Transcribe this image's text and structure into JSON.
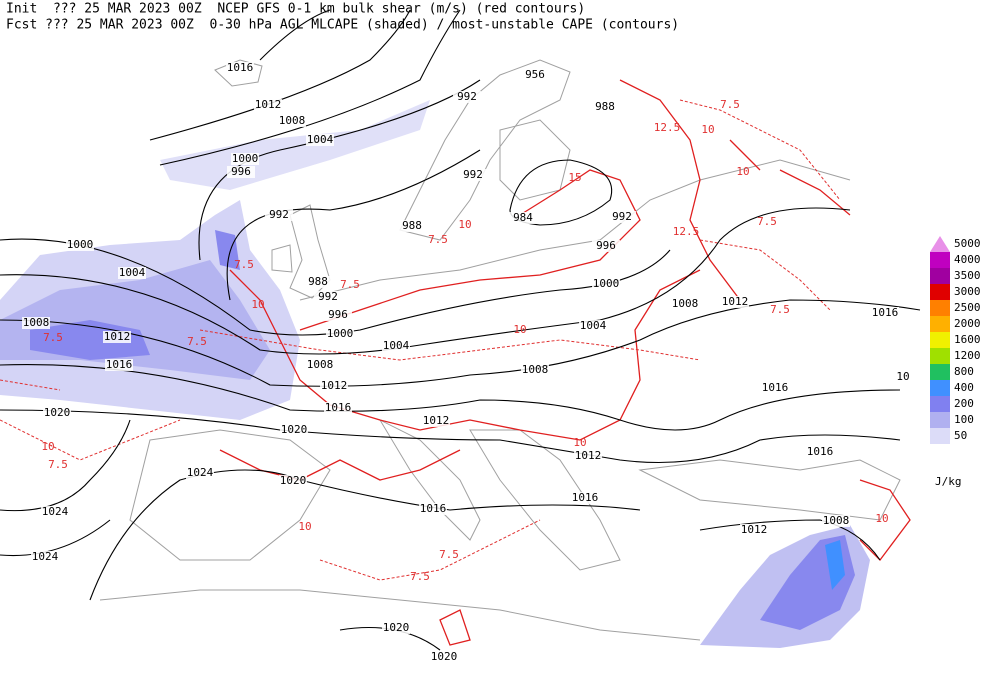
{
  "header": {
    "line1": "Init  ??? 25 MAR 2023 00Z  NCEP GFS 0-1 km bulk shear (m/s) (red contours)",
    "line2": "Fcst ??? 25 MAR 2023 00Z  0-30 hPa AGL MLCAPE (shaded) / most-unstable CAPE (contours)"
  },
  "legend": {
    "levels": [
      5000,
      4000,
      3500,
      3000,
      2500,
      2000,
      1600,
      1200,
      800,
      400,
      200,
      100,
      50
    ],
    "colors": [
      "#e890e8",
      "#c000c0",
      "#a000a0",
      "#e00000",
      "#ff8000",
      "#ffb000",
      "#f0f000",
      "#a0e000",
      "#20c060",
      "#4090ff",
      "#8080f0",
      "#b0b0f0",
      "#dcdcf8"
    ],
    "unit": "J/kg"
  },
  "isobar_labels": [
    1016,
    1012,
    1008,
    1004,
    1000,
    996,
    992,
    1000,
    1004,
    1008,
    1012,
    1016,
    1020,
    1024,
    1024,
    1024,
    956,
    992,
    988,
    992,
    984,
    988,
    992,
    996,
    1000,
    988,
    992,
    996,
    1000,
    1004,
    1008,
    1012,
    1016,
    1020,
    1012,
    1008,
    1004,
    1008,
    1012,
    1016,
    1016,
    1016,
    1012,
    1020,
    1016,
    1016,
    1012,
    1008,
    1020,
    1020,
    10
  ],
  "shear_labels": [
    7.5,
    12.5,
    10,
    15,
    10,
    7.5,
    12.5,
    7.5,
    10,
    7.5,
    7.5,
    10,
    7.5,
    7.5,
    10,
    7.5,
    10,
    7.5,
    10,
    7.5,
    7.5,
    10,
    10
  ]
}
